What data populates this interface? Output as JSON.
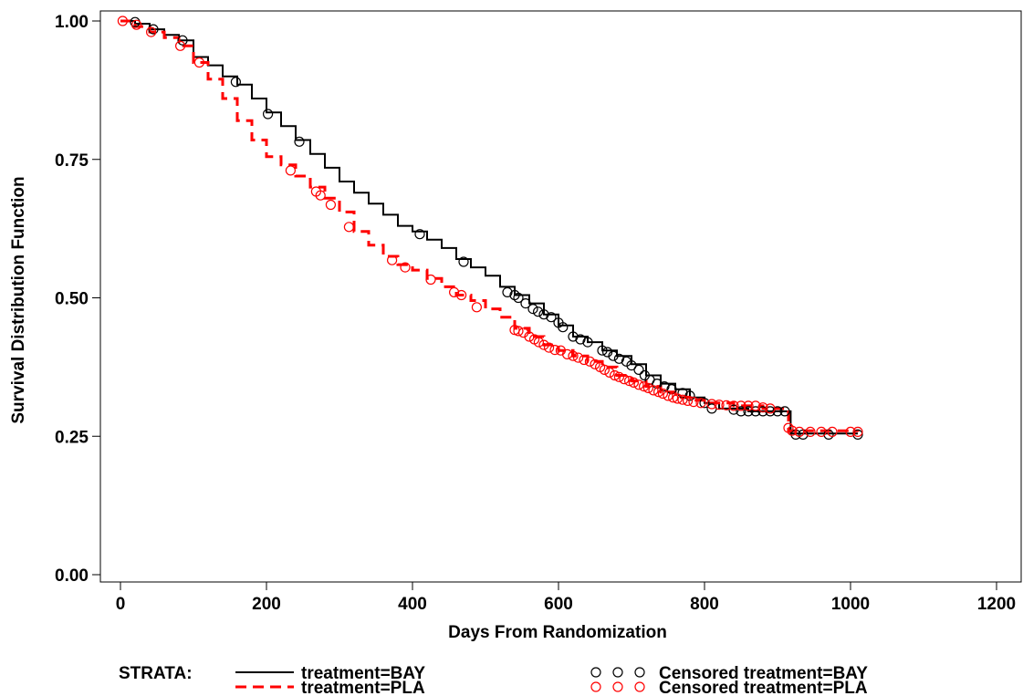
{
  "chart_data": {
    "type": "line",
    "xlabel": "Days From Randomization",
    "ylabel": "Survival Distribution Function",
    "xlim": [
      0,
      1200
    ],
    "ylim": [
      0,
      1
    ],
    "x_ticks": [
      "0",
      "200",
      "400",
      "600",
      "800",
      "1000",
      "1200"
    ],
    "y_ticks": [
      "0.00",
      "0.25",
      "0.50",
      "0.75",
      "1.00"
    ],
    "grid": false,
    "legend": {
      "placement": "bottom",
      "title": "STRATA:",
      "lines": [
        "treatment=BAY",
        "treatment=PLA"
      ],
      "censored": [
        "Censored treatment=BAY",
        "Censored treatment=PLA"
      ]
    },
    "series": [
      {
        "name": "treatment=BAY",
        "color": "#000000",
        "style": "solid",
        "points": [
          [
            0,
            1.0
          ],
          [
            20,
            0.995
          ],
          [
            40,
            0.985
          ],
          [
            60,
            0.975
          ],
          [
            80,
            0.965
          ],
          [
            100,
            0.935
          ],
          [
            120,
            0.92
          ],
          [
            140,
            0.9
          ],
          [
            160,
            0.885
          ],
          [
            180,
            0.86
          ],
          [
            200,
            0.835
          ],
          [
            220,
            0.81
          ],
          [
            240,
            0.785
          ],
          [
            260,
            0.76
          ],
          [
            280,
            0.735
          ],
          [
            300,
            0.71
          ],
          [
            320,
            0.69
          ],
          [
            340,
            0.67
          ],
          [
            360,
            0.65
          ],
          [
            380,
            0.63
          ],
          [
            400,
            0.62
          ],
          [
            420,
            0.605
          ],
          [
            440,
            0.59
          ],
          [
            460,
            0.57
          ],
          [
            480,
            0.555
          ],
          [
            500,
            0.54
          ],
          [
            520,
            0.52
          ],
          [
            540,
            0.505
          ],
          [
            560,
            0.49
          ],
          [
            580,
            0.47
          ],
          [
            600,
            0.45
          ],
          [
            620,
            0.43
          ],
          [
            640,
            0.42
          ],
          [
            660,
            0.405
          ],
          [
            680,
            0.395
          ],
          [
            700,
            0.38
          ],
          [
            720,
            0.36
          ],
          [
            740,
            0.345
          ],
          [
            760,
            0.335
          ],
          [
            780,
            0.32
          ],
          [
            800,
            0.31
          ],
          [
            820,
            0.3
          ],
          [
            860,
            0.295
          ],
          [
            900,
            0.295
          ],
          [
            918,
            0.295
          ],
          [
            918,
            0.255
          ],
          [
            1010,
            0.255
          ]
        ],
        "censored": [
          [
            20,
            0.998
          ],
          [
            45,
            0.985
          ],
          [
            85,
            0.965
          ],
          [
            158,
            0.89
          ],
          [
            202,
            0.832
          ],
          [
            245,
            0.782
          ],
          [
            410,
            0.615
          ],
          [
            470,
            0.565
          ],
          [
            530,
            0.51
          ],
          [
            540,
            0.505
          ],
          [
            545,
            0.5
          ],
          [
            555,
            0.49
          ],
          [
            565,
            0.48
          ],
          [
            572,
            0.475
          ],
          [
            580,
            0.47
          ],
          [
            590,
            0.465
          ],
          [
            600,
            0.455
          ],
          [
            606,
            0.447
          ],
          [
            620,
            0.43
          ],
          [
            630,
            0.425
          ],
          [
            640,
            0.42
          ],
          [
            660,
            0.405
          ],
          [
            667,
            0.402
          ],
          [
            675,
            0.395
          ],
          [
            683,
            0.39
          ],
          [
            693,
            0.385
          ],
          [
            700,
            0.378
          ],
          [
            710,
            0.37
          ],
          [
            718,
            0.36
          ],
          [
            725,
            0.352
          ],
          [
            735,
            0.345
          ],
          [
            745,
            0.34
          ],
          [
            755,
            0.335
          ],
          [
            770,
            0.328
          ],
          [
            780,
            0.323
          ],
          [
            800,
            0.31
          ],
          [
            810,
            0.3
          ],
          [
            840,
            0.298
          ],
          [
            850,
            0.295
          ],
          [
            860,
            0.295
          ],
          [
            870,
            0.295
          ],
          [
            880,
            0.295
          ],
          [
            890,
            0.295
          ],
          [
            900,
            0.295
          ],
          [
            910,
            0.295
          ],
          [
            925,
            0.253
          ],
          [
            935,
            0.253
          ],
          [
            970,
            0.253
          ],
          [
            1010,
            0.253
          ]
        ]
      },
      {
        "name": "treatment=PLA",
        "color": "#ff0000",
        "style": "dashed",
        "points": [
          [
            0,
            1.0
          ],
          [
            20,
            0.99
          ],
          [
            40,
            0.98
          ],
          [
            60,
            0.97
          ],
          [
            80,
            0.955
          ],
          [
            100,
            0.925
          ],
          [
            120,
            0.895
          ],
          [
            140,
            0.86
          ],
          [
            160,
            0.82
          ],
          [
            180,
            0.785
          ],
          [
            200,
            0.755
          ],
          [
            220,
            0.74
          ],
          [
            240,
            0.72
          ],
          [
            260,
            0.7
          ],
          [
            280,
            0.68
          ],
          [
            300,
            0.655
          ],
          [
            320,
            0.62
          ],
          [
            340,
            0.595
          ],
          [
            360,
            0.575
          ],
          [
            380,
            0.56
          ],
          [
            400,
            0.55
          ],
          [
            420,
            0.535
          ],
          [
            440,
            0.52
          ],
          [
            460,
            0.505
          ],
          [
            480,
            0.495
          ],
          [
            500,
            0.48
          ],
          [
            520,
            0.465
          ],
          [
            540,
            0.445
          ],
          [
            560,
            0.43
          ],
          [
            580,
            0.415
          ],
          [
            600,
            0.405
          ],
          [
            620,
            0.395
          ],
          [
            640,
            0.385
          ],
          [
            660,
            0.375
          ],
          [
            680,
            0.36
          ],
          [
            700,
            0.35
          ],
          [
            720,
            0.34
          ],
          [
            740,
            0.33
          ],
          [
            760,
            0.32
          ],
          [
            780,
            0.315
          ],
          [
            800,
            0.31
          ],
          [
            840,
            0.305
          ],
          [
            880,
            0.3
          ],
          [
            915,
            0.285
          ],
          [
            915,
            0.26
          ],
          [
            1010,
            0.258
          ]
        ],
        "censored": [
          [
            3,
            1.0
          ],
          [
            22,
            0.993
          ],
          [
            42,
            0.98
          ],
          [
            82,
            0.955
          ],
          [
            108,
            0.925
          ],
          [
            233,
            0.73
          ],
          [
            268,
            0.692
          ],
          [
            274,
            0.685
          ],
          [
            288,
            0.668
          ],
          [
            313,
            0.628
          ],
          [
            372,
            0.568
          ],
          [
            390,
            0.555
          ],
          [
            425,
            0.533
          ],
          [
            457,
            0.51
          ],
          [
            467,
            0.505
          ],
          [
            488,
            0.483
          ],
          [
            540,
            0.442
          ],
          [
            545,
            0.44
          ],
          [
            552,
            0.437
          ],
          [
            560,
            0.43
          ],
          [
            567,
            0.425
          ],
          [
            573,
            0.42
          ],
          [
            580,
            0.415
          ],
          [
            587,
            0.41
          ],
          [
            595,
            0.406
          ],
          [
            603,
            0.405
          ],
          [
            612,
            0.398
          ],
          [
            620,
            0.395
          ],
          [
            627,
            0.392
          ],
          [
            635,
            0.388
          ],
          [
            643,
            0.385
          ],
          [
            650,
            0.38
          ],
          [
            657,
            0.375
          ],
          [
            663,
            0.37
          ],
          [
            670,
            0.365
          ],
          [
            677,
            0.36
          ],
          [
            683,
            0.357
          ],
          [
            690,
            0.353
          ],
          [
            697,
            0.35
          ],
          [
            703,
            0.347
          ],
          [
            710,
            0.343
          ],
          [
            717,
            0.34
          ],
          [
            723,
            0.337
          ],
          [
            730,
            0.333
          ],
          [
            737,
            0.33
          ],
          [
            743,
            0.327
          ],
          [
            750,
            0.323
          ],
          [
            757,
            0.32
          ],
          [
            763,
            0.318
          ],
          [
            770,
            0.316
          ],
          [
            777,
            0.314
          ],
          [
            785,
            0.312
          ],
          [
            795,
            0.31
          ],
          [
            810,
            0.308
          ],
          [
            820,
            0.307
          ],
          [
            830,
            0.306
          ],
          [
            840,
            0.305
          ],
          [
            850,
            0.305
          ],
          [
            860,
            0.305
          ],
          [
            870,
            0.305
          ],
          [
            880,
            0.302
          ],
          [
            890,
            0.3
          ],
          [
            915,
            0.265
          ],
          [
            920,
            0.26
          ],
          [
            930,
            0.258
          ],
          [
            945,
            0.258
          ],
          [
            960,
            0.258
          ],
          [
            975,
            0.258
          ],
          [
            1000,
            0.258
          ],
          [
            1010,
            0.258
          ]
        ]
      }
    ]
  }
}
